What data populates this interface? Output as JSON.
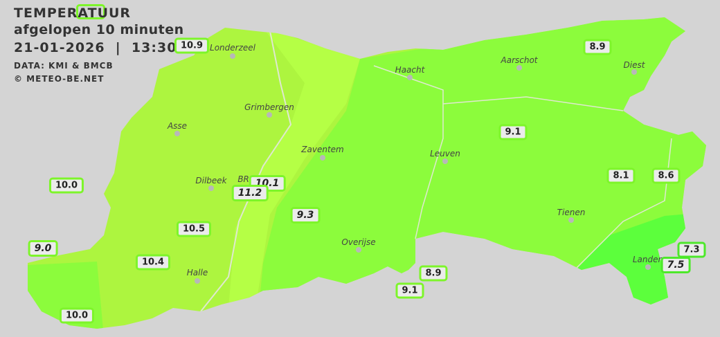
{
  "header": {
    "title": "TEMPERATUUR",
    "subtitle": "afgelopen 10 minuten",
    "datetime": "21-01-2026  |  13:30",
    "source": "DATA: KMI & BMCB",
    "copyright": "© METEO-BE.NET"
  },
  "colors": {
    "background": "#d4d4d4",
    "temp_10_11": "#adf53f",
    "temp_11_12": "#b5ff45",
    "temp_9_10": "#8cfc3c",
    "temp_7_8": "#5cff3c",
    "label_border": "#7df52a"
  },
  "cities": [
    {
      "name": "Londerzeel"
    },
    {
      "name": "Haacht"
    },
    {
      "name": "Aarschot"
    },
    {
      "name": "Diest"
    },
    {
      "name": "Grimbergen"
    },
    {
      "name": "Asse"
    },
    {
      "name": "Zaventem"
    },
    {
      "name": "Leuven"
    },
    {
      "name": "Dilbeek"
    },
    {
      "name": "BRU"
    },
    {
      "name": "Tienen"
    },
    {
      "name": "Overijse"
    },
    {
      "name": "Halle"
    },
    {
      "name": "Landen"
    }
  ],
  "stations": [
    {
      "value": "10.9"
    },
    {
      "value": "8.9"
    },
    {
      "value": "9.1"
    },
    {
      "value": "10.0"
    },
    {
      "value": "10.1"
    },
    {
      "value": "11.2"
    },
    {
      "value": "8.1"
    },
    {
      "value": "8.6"
    },
    {
      "value": "9.3"
    },
    {
      "value": "10.5"
    },
    {
      "value": "9.0"
    },
    {
      "value": "10.4"
    },
    {
      "value": "8.9"
    },
    {
      "value": "9.1"
    },
    {
      "value": "10.0"
    },
    {
      "value": "7.3"
    },
    {
      "value": "7.5"
    }
  ]
}
